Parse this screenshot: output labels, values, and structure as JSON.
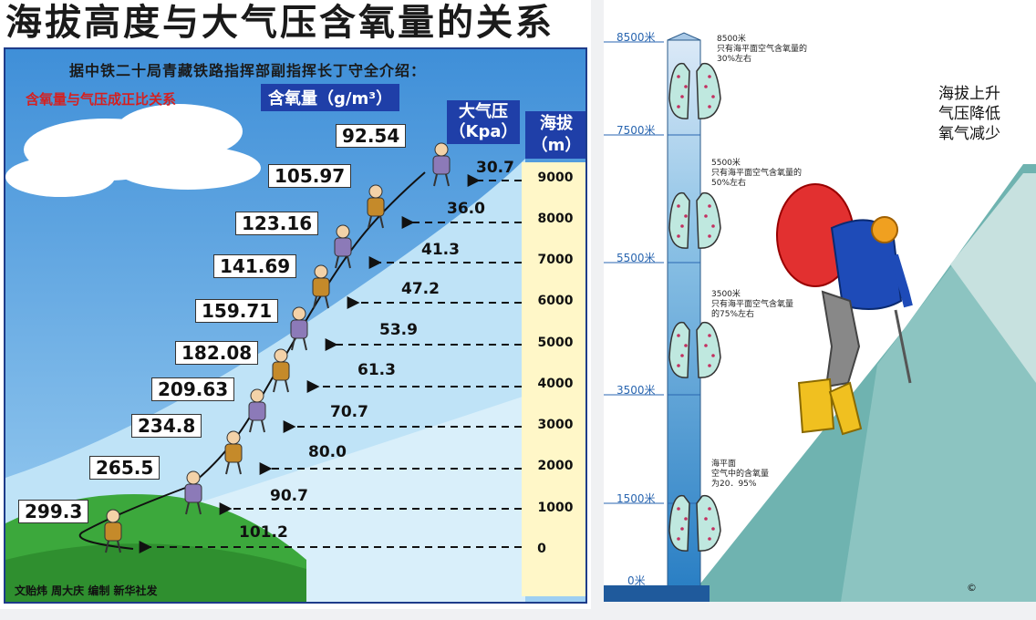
{
  "left": {
    "title": "海拔高度与大气压含氧量的关系",
    "subtitle": "据中铁二十局青藏铁路指挥部副指挥长丁守全介绍：",
    "note": "含氧量与气压成正比关系",
    "oxygen_header": "含氧量（g/m³）",
    "pressure_header_1": "大气压",
    "pressure_header_2": "（Kpa）",
    "altitude_header_1": "海拔",
    "altitude_header_2": "（m）",
    "rows": [
      {
        "altitude": "9000",
        "pressure": "30.7",
        "oxygen": "92.54"
      },
      {
        "altitude": "8000",
        "pressure": "36.0",
        "oxygen": "105.97"
      },
      {
        "altitude": "7000",
        "pressure": "41.3",
        "oxygen": "123.16"
      },
      {
        "altitude": "6000",
        "pressure": "47.2",
        "oxygen": "141.69"
      },
      {
        "altitude": "5000",
        "pressure": "53.9",
        "oxygen": "159.71"
      },
      {
        "altitude": "4000",
        "pressure": "61.3",
        "oxygen": "182.08"
      },
      {
        "altitude": "3000",
        "pressure": "70.7",
        "oxygen": "209.63"
      },
      {
        "altitude": "2000",
        "pressure": "80.0",
        "oxygen": "234.8"
      },
      {
        "altitude": "1000",
        "pressure": "90.7",
        "oxygen": "265.5"
      },
      {
        "altitude": "0",
        "pressure": "101.2",
        "oxygen": "299.3"
      }
    ],
    "credit": "文贻炜 周大庆 编制 新华社发"
  },
  "right": {
    "scale": [
      "8500米",
      "7500米",
      "5500米",
      "3500米",
      "1500米",
      "0米"
    ],
    "annotations": [
      "8500米\n只有海平面空气含氧量的\n30%左右",
      "5500米\n只有海平面空气含氧量的\n50%左右",
      "3500米\n只有海平面空气含氧量\n的75%左右",
      "海平面\n空气中的含氧量\n为20．95%"
    ],
    "headline_1": "海拔上升",
    "headline_2": "气压降低",
    "headline_3": "氧气减少",
    "copyright": "©"
  }
}
